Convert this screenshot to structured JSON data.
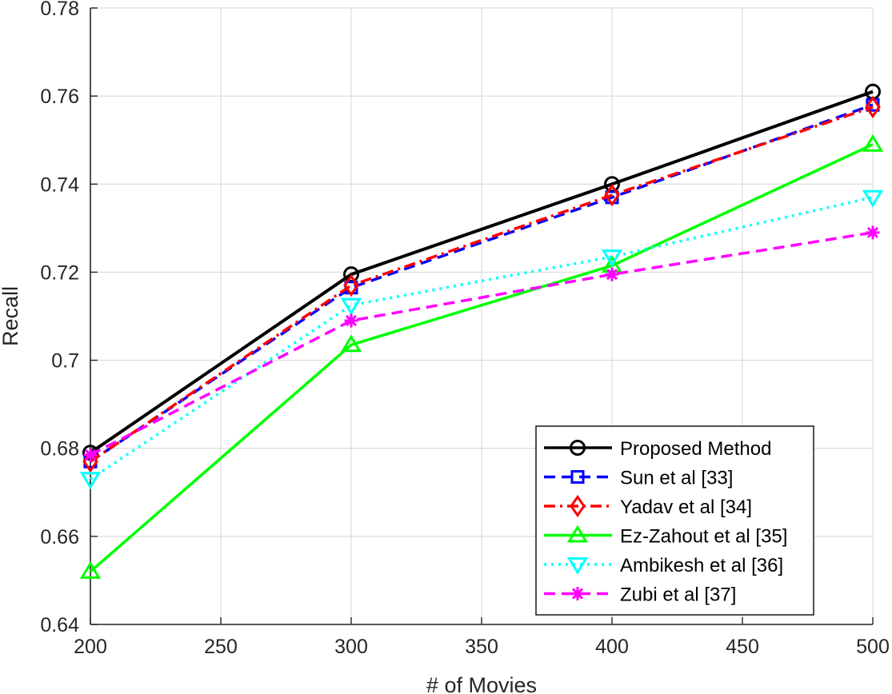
{
  "chart_data": {
    "type": "line",
    "title": "",
    "xlabel": "# of Movies",
    "ylabel": "Recall",
    "x": [
      200,
      300,
      400,
      500
    ],
    "xlim": [
      200,
      500
    ],
    "ylim": [
      0.64,
      0.78
    ],
    "xticks": [
      200,
      250,
      300,
      350,
      400,
      450,
      500
    ],
    "xtick_labels": [
      "200",
      "250",
      "300",
      "350",
      "400",
      "450",
      "500"
    ],
    "yticks": [
      0.64,
      0.66,
      0.68,
      0.7,
      0.72,
      0.74,
      0.76,
      0.78
    ],
    "ytick_labels": [
      "0.64",
      "0.66",
      "0.68",
      "0.7",
      "0.72",
      "0.74",
      "0.76",
      "0.78"
    ],
    "grid": true,
    "legend_position": "bottom-right",
    "series": [
      {
        "name": "Proposed Method",
        "values": [
          0.679,
          0.7195,
          0.74,
          0.761
        ],
        "color": "#000000",
        "dash": "solid",
        "marker": "circle"
      },
      {
        "name": "Sun et al [33]",
        "values": [
          0.677,
          0.7165,
          0.737,
          0.758
        ],
        "color": "#0000ff",
        "dash": "dashed",
        "marker": "square"
      },
      {
        "name": "Yadav et al [34]",
        "values": [
          0.677,
          0.717,
          0.7375,
          0.7575
        ],
        "color": "#ff0000",
        "dash": "dashdot",
        "marker": "diamond"
      },
      {
        "name": "Ez-Zahout et al [35]",
        "values": [
          0.652,
          0.7035,
          0.7215,
          0.749
        ],
        "color": "#00ff00",
        "dash": "solid",
        "marker": "triangle-up"
      },
      {
        "name": "Ambikesh et al [36]",
        "values": [
          0.673,
          0.7125,
          0.7235,
          0.737
        ],
        "color": "#00ffff",
        "dash": "dotted",
        "marker": "triangle-down"
      },
      {
        "name": "Zubi et al [37]",
        "values": [
          0.6785,
          0.709,
          0.7195,
          0.729
        ],
        "color": "#ff00ff",
        "dash": "dashed",
        "marker": "asterisk"
      }
    ]
  }
}
